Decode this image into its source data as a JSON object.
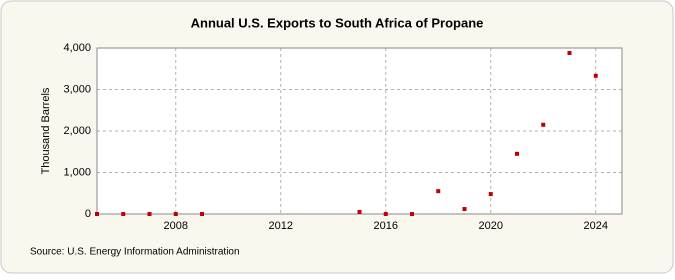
{
  "chart_data": {
    "type": "scatter",
    "title": "Annual U.S. Exports to South Africa of Propane",
    "ylabel": "Thousand Barrels",
    "source": "Source: U.S. Energy Information Administration",
    "x": [
      2005,
      2006,
      2007,
      2008,
      2009,
      2015,
      2016,
      2017,
      2018,
      2019,
      2020,
      2021,
      2022,
      2023,
      2024
    ],
    "values": [
      0,
      0,
      0,
      0,
      0,
      50,
      0,
      0,
      550,
      120,
      480,
      1450,
      2150,
      3880,
      3330
    ],
    "color": "#c00000",
    "xlim": [
      2005,
      2025
    ],
    "xticks": [
      2008,
      2012,
      2016,
      2020,
      2024
    ],
    "ylim": [
      0,
      4000
    ],
    "yticks": [
      0,
      {
        "value": 1000,
        "label": "1,000"
      },
      {
        "value": 2000,
        "label": "2,000"
      },
      {
        "value": 3000,
        "label": "3,000"
      },
      {
        "value": 4000,
        "label": "4,000"
      }
    ],
    "grid": true
  }
}
